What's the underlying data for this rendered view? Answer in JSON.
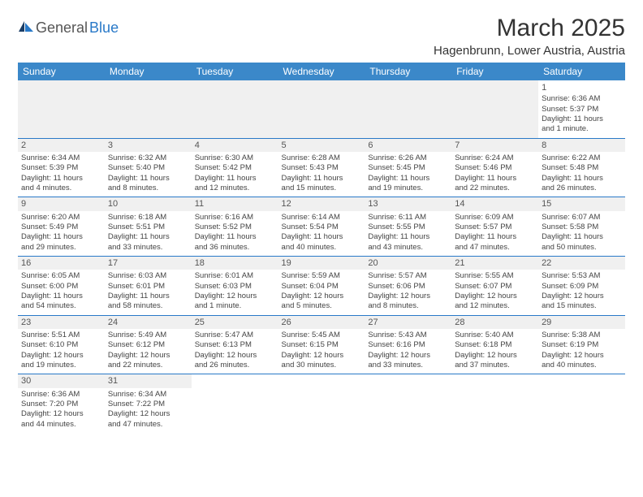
{
  "logo": {
    "text1": "General",
    "text2": "Blue"
  },
  "title": "March 2025",
  "location": "Hagenbrunn, Lower Austria, Austria",
  "headers": [
    "Sunday",
    "Monday",
    "Tuesday",
    "Wednesday",
    "Thursday",
    "Friday",
    "Saturday"
  ],
  "colors": {
    "header_bg": "#3b88c9",
    "header_fg": "#ffffff",
    "border": "#2979c8",
    "shade": "#f0f0f0",
    "text": "#444444"
  },
  "weeks": [
    [
      null,
      null,
      null,
      null,
      null,
      null,
      {
        "n": "1",
        "sr": "Sunrise: 6:36 AM",
        "ss": "Sunset: 5:37 PM",
        "d1": "Daylight: 11 hours",
        "d2": "and 1 minute."
      }
    ],
    [
      {
        "n": "2",
        "sr": "Sunrise: 6:34 AM",
        "ss": "Sunset: 5:39 PM",
        "d1": "Daylight: 11 hours",
        "d2": "and 4 minutes."
      },
      {
        "n": "3",
        "sr": "Sunrise: 6:32 AM",
        "ss": "Sunset: 5:40 PM",
        "d1": "Daylight: 11 hours",
        "d2": "and 8 minutes."
      },
      {
        "n": "4",
        "sr": "Sunrise: 6:30 AM",
        "ss": "Sunset: 5:42 PM",
        "d1": "Daylight: 11 hours",
        "d2": "and 12 minutes."
      },
      {
        "n": "5",
        "sr": "Sunrise: 6:28 AM",
        "ss": "Sunset: 5:43 PM",
        "d1": "Daylight: 11 hours",
        "d2": "and 15 minutes."
      },
      {
        "n": "6",
        "sr": "Sunrise: 6:26 AM",
        "ss": "Sunset: 5:45 PM",
        "d1": "Daylight: 11 hours",
        "d2": "and 19 minutes."
      },
      {
        "n": "7",
        "sr": "Sunrise: 6:24 AM",
        "ss": "Sunset: 5:46 PM",
        "d1": "Daylight: 11 hours",
        "d2": "and 22 minutes."
      },
      {
        "n": "8",
        "sr": "Sunrise: 6:22 AM",
        "ss": "Sunset: 5:48 PM",
        "d1": "Daylight: 11 hours",
        "d2": "and 26 minutes."
      }
    ],
    [
      {
        "n": "9",
        "sr": "Sunrise: 6:20 AM",
        "ss": "Sunset: 5:49 PM",
        "d1": "Daylight: 11 hours",
        "d2": "and 29 minutes."
      },
      {
        "n": "10",
        "sr": "Sunrise: 6:18 AM",
        "ss": "Sunset: 5:51 PM",
        "d1": "Daylight: 11 hours",
        "d2": "and 33 minutes."
      },
      {
        "n": "11",
        "sr": "Sunrise: 6:16 AM",
        "ss": "Sunset: 5:52 PM",
        "d1": "Daylight: 11 hours",
        "d2": "and 36 minutes."
      },
      {
        "n": "12",
        "sr": "Sunrise: 6:14 AM",
        "ss": "Sunset: 5:54 PM",
        "d1": "Daylight: 11 hours",
        "d2": "and 40 minutes."
      },
      {
        "n": "13",
        "sr": "Sunrise: 6:11 AM",
        "ss": "Sunset: 5:55 PM",
        "d1": "Daylight: 11 hours",
        "d2": "and 43 minutes."
      },
      {
        "n": "14",
        "sr": "Sunrise: 6:09 AM",
        "ss": "Sunset: 5:57 PM",
        "d1": "Daylight: 11 hours",
        "d2": "and 47 minutes."
      },
      {
        "n": "15",
        "sr": "Sunrise: 6:07 AM",
        "ss": "Sunset: 5:58 PM",
        "d1": "Daylight: 11 hours",
        "d2": "and 50 minutes."
      }
    ],
    [
      {
        "n": "16",
        "sr": "Sunrise: 6:05 AM",
        "ss": "Sunset: 6:00 PM",
        "d1": "Daylight: 11 hours",
        "d2": "and 54 minutes."
      },
      {
        "n": "17",
        "sr": "Sunrise: 6:03 AM",
        "ss": "Sunset: 6:01 PM",
        "d1": "Daylight: 11 hours",
        "d2": "and 58 minutes."
      },
      {
        "n": "18",
        "sr": "Sunrise: 6:01 AM",
        "ss": "Sunset: 6:03 PM",
        "d1": "Daylight: 12 hours",
        "d2": "and 1 minute."
      },
      {
        "n": "19",
        "sr": "Sunrise: 5:59 AM",
        "ss": "Sunset: 6:04 PM",
        "d1": "Daylight: 12 hours",
        "d2": "and 5 minutes."
      },
      {
        "n": "20",
        "sr": "Sunrise: 5:57 AM",
        "ss": "Sunset: 6:06 PM",
        "d1": "Daylight: 12 hours",
        "d2": "and 8 minutes."
      },
      {
        "n": "21",
        "sr": "Sunrise: 5:55 AM",
        "ss": "Sunset: 6:07 PM",
        "d1": "Daylight: 12 hours",
        "d2": "and 12 minutes."
      },
      {
        "n": "22",
        "sr": "Sunrise: 5:53 AM",
        "ss": "Sunset: 6:09 PM",
        "d1": "Daylight: 12 hours",
        "d2": "and 15 minutes."
      }
    ],
    [
      {
        "n": "23",
        "sr": "Sunrise: 5:51 AM",
        "ss": "Sunset: 6:10 PM",
        "d1": "Daylight: 12 hours",
        "d2": "and 19 minutes."
      },
      {
        "n": "24",
        "sr": "Sunrise: 5:49 AM",
        "ss": "Sunset: 6:12 PM",
        "d1": "Daylight: 12 hours",
        "d2": "and 22 minutes."
      },
      {
        "n": "25",
        "sr": "Sunrise: 5:47 AM",
        "ss": "Sunset: 6:13 PM",
        "d1": "Daylight: 12 hours",
        "d2": "and 26 minutes."
      },
      {
        "n": "26",
        "sr": "Sunrise: 5:45 AM",
        "ss": "Sunset: 6:15 PM",
        "d1": "Daylight: 12 hours",
        "d2": "and 30 minutes."
      },
      {
        "n": "27",
        "sr": "Sunrise: 5:43 AM",
        "ss": "Sunset: 6:16 PM",
        "d1": "Daylight: 12 hours",
        "d2": "and 33 minutes."
      },
      {
        "n": "28",
        "sr": "Sunrise: 5:40 AM",
        "ss": "Sunset: 6:18 PM",
        "d1": "Daylight: 12 hours",
        "d2": "and 37 minutes."
      },
      {
        "n": "29",
        "sr": "Sunrise: 5:38 AM",
        "ss": "Sunset: 6:19 PM",
        "d1": "Daylight: 12 hours",
        "d2": "and 40 minutes."
      }
    ],
    [
      {
        "n": "30",
        "sr": "Sunrise: 6:36 AM",
        "ss": "Sunset: 7:20 PM",
        "d1": "Daylight: 12 hours",
        "d2": "and 44 minutes."
      },
      {
        "n": "31",
        "sr": "Sunrise: 6:34 AM",
        "ss": "Sunset: 7:22 PM",
        "d1": "Daylight: 12 hours",
        "d2": "and 47 minutes."
      },
      null,
      null,
      null,
      null,
      null
    ]
  ]
}
